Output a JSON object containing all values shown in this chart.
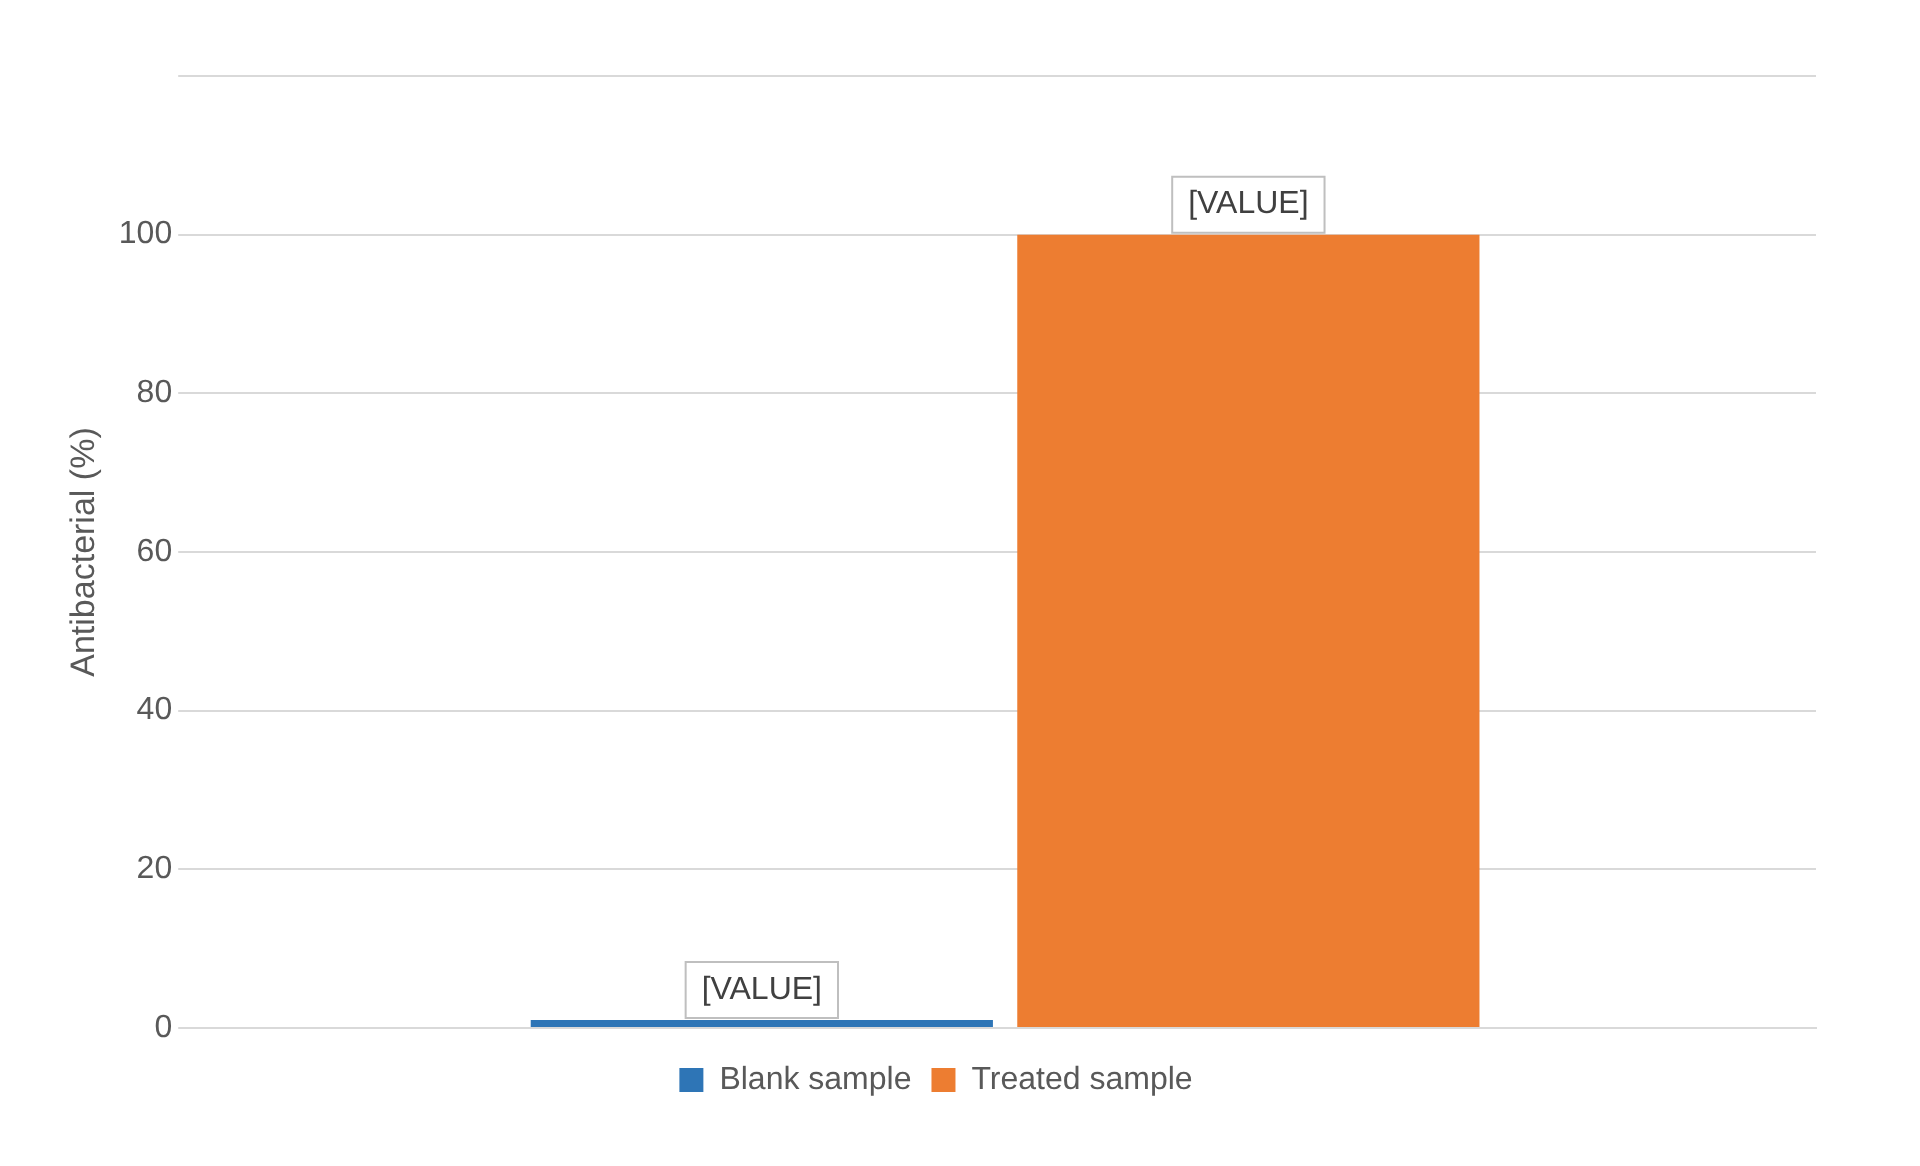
{
  "chart_data": {
    "type": "bar",
    "ylabel": "Antibacterial (%)",
    "categories": [
      null
    ],
    "series": [
      {
        "name": "Blank sample",
        "color": "#2e75b6",
        "values": [
          1
        ],
        "value_labels": [
          "[VALUE]"
        ]
      },
      {
        "name": "Treated sample",
        "color": "#ed7d31",
        "values": [
          100
        ],
        "value_labels": [
          "[VALUE]"
        ]
      }
    ],
    "ylim": [
      0,
      120
    ],
    "yticks": [
      0,
      20,
      40,
      60,
      80,
      100,
      {
        "value": 120,
        "label": null
      }
    ],
    "grid": "y",
    "legend": "bottom"
  }
}
